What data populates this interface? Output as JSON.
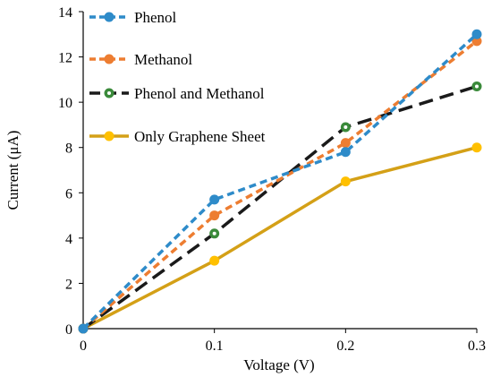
{
  "chart_data": {
    "type": "line",
    "title": "",
    "xlabel": "Voltage (V)",
    "ylabel": "Current (μA)",
    "x": [
      0,
      0.1,
      0.2,
      0.3
    ],
    "x_ticks": [
      "0",
      "0.1",
      "0.2",
      "0.3"
    ],
    "y_ticks": [
      "0",
      "2",
      "4",
      "6",
      "8",
      "10",
      "12",
      "14"
    ],
    "xlim": [
      0,
      0.3
    ],
    "ylim": [
      0,
      14
    ],
    "grid": false,
    "legend_position": "top-left",
    "series": [
      {
        "name": "Phenol",
        "values": [
          0,
          5.7,
          7.8,
          13.0
        ],
        "color": "#2E8BC9",
        "dash": "dashed",
        "marker": "filled-circle"
      },
      {
        "name": "Methanol",
        "values": [
          0,
          5.0,
          8.2,
          12.7
        ],
        "color": "#ED7D31",
        "dash": "dashed",
        "marker": "filled-circle"
      },
      {
        "name": "Phenol and Methanol",
        "values": [
          0,
          4.2,
          8.9,
          10.7
        ],
        "color": "#1A1A1A",
        "marker_color": "#3A8A3A",
        "dash": "long-dash",
        "marker": "dotted-circle"
      },
      {
        "name": "Only Graphene Sheet",
        "values": [
          0,
          3.0,
          6.5,
          8.0
        ],
        "color": "#D4A017",
        "marker_color": "#FFC000",
        "dash": "solid",
        "marker": "filled-circle"
      }
    ]
  }
}
